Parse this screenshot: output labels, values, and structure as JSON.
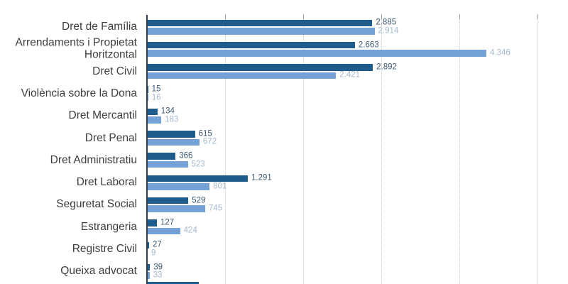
{
  "page": {
    "background": "#ffffff",
    "title": "",
    "legend": "none visible"
  },
  "chart_data": {
    "type": "bar",
    "orientation": "horizontal",
    "title": "",
    "xlabel": "",
    "ylabel": "",
    "categories": [
      "Dret de Família",
      "Arrendaments i Propietat Horitzontal",
      "Dret Civil",
      "Violència sobre la Dona",
      "Dret Mercantil",
      "Dret Penal",
      "Dret Administratiu",
      "Dret Laboral",
      "Seguretat Social",
      "Estrangeria",
      "Registre Civil",
      "Queixa advocat"
    ],
    "category_lines": [
      [
        "Dret de Família"
      ],
      [
        "Arrendaments i Propietat",
        "Horitzontal"
      ],
      [
        "Dret Civil"
      ],
      [
        "Violència sobre la Dona"
      ],
      [
        "Dret Mercantil"
      ],
      [
        "Dret Penal"
      ],
      [
        "Dret Administratiu"
      ],
      [
        "Dret Laboral"
      ],
      [
        "Seguretat Social"
      ],
      [
        "Estrangeria"
      ],
      [
        "Registre Civil"
      ],
      [
        "Queixa advocat"
      ]
    ],
    "series": [
      {
        "name": "dark_blue",
        "color": "#1f5c8e",
        "values": [
          2885,
          2663,
          2892,
          15,
          134,
          615,
          366,
          1291,
          529,
          127,
          27,
          39
        ],
        "value_labels": [
          "2.885",
          "2.663",
          "2.892",
          "15",
          "134",
          "615",
          "366",
          "1.291",
          "529",
          "127",
          "27",
          "39"
        ]
      },
      {
        "name": "light_blue",
        "color": "#74a2d7",
        "values": [
          2914,
          4346,
          2421,
          16,
          183,
          672,
          523,
          801,
          745,
          424,
          9,
          33
        ],
        "value_labels": [
          "2.914",
          "4.346",
          "2.421",
          "16",
          "183",
          "672",
          "523",
          "801",
          "745",
          "424",
          "9",
          "33"
        ]
      }
    ],
    "xlim": [
      0,
      5390
    ],
    "x_gridlines": [
      1000,
      2000,
      3000,
      4000,
      5000
    ],
    "grid_style": "vertical dotted lines with short top ticks",
    "legend_position": "none",
    "cutoff_bar": {
      "series": "dark_blue",
      "approx_value": 660,
      "note": "13th category bar partially visible at bottom edge of screenshot"
    }
  },
  "style": {
    "dark_bar_color": "#1f5c8e",
    "light_bar_color": "#74a2d7",
    "dark_value_label_color": "#3e5a76",
    "light_value_label_color": "#a4b8cf",
    "category_label_color": "#3e3e3e",
    "gridline_color": "#c6c6c6",
    "tick_color": "#9aa0a6",
    "axis_color": "#32414f"
  }
}
